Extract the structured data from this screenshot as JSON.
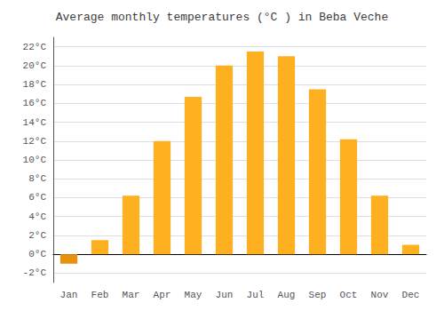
{
  "chart_data": {
    "type": "bar",
    "title": "Average monthly temperatures (°C ) in Beba Veche",
    "categories": [
      "Jan",
      "Feb",
      "Mar",
      "Apr",
      "May",
      "Jun",
      "Jul",
      "Aug",
      "Sep",
      "Oct",
      "Nov",
      "Dec"
    ],
    "values": [
      -1.0,
      1.5,
      6.2,
      12.0,
      16.7,
      20.0,
      21.5,
      21.0,
      17.5,
      12.2,
      6.2,
      1.0
    ],
    "colors": [
      "#E89010",
      "#FFB020",
      "#FFB020",
      "#FFB020",
      "#FFB020",
      "#FFB020",
      "#FFB020",
      "#FFB020",
      "#FFB020",
      "#FFB020",
      "#FFB020",
      "#FFB020"
    ],
    "ylim": [
      -3,
      23
    ],
    "yticks": [
      {
        "value": -2,
        "label": "-2°C"
      },
      {
        "value": 0,
        "label": "0°C"
      },
      {
        "value": 2,
        "label": "2°C"
      },
      {
        "value": 4,
        "label": "4°C"
      },
      {
        "value": 6,
        "label": "6°C"
      },
      {
        "value": 8,
        "label": "8°C"
      },
      {
        "value": 10,
        "label": "10°C"
      },
      {
        "value": 12,
        "label": "12°C"
      },
      {
        "value": 14,
        "label": "14°C"
      },
      {
        "value": 16,
        "label": "16°C"
      },
      {
        "value": 18,
        "label": "18°C"
      },
      {
        "value": 20,
        "label": "20°C"
      },
      {
        "value": 22,
        "label": "22°C"
      }
    ],
    "grid": true
  }
}
